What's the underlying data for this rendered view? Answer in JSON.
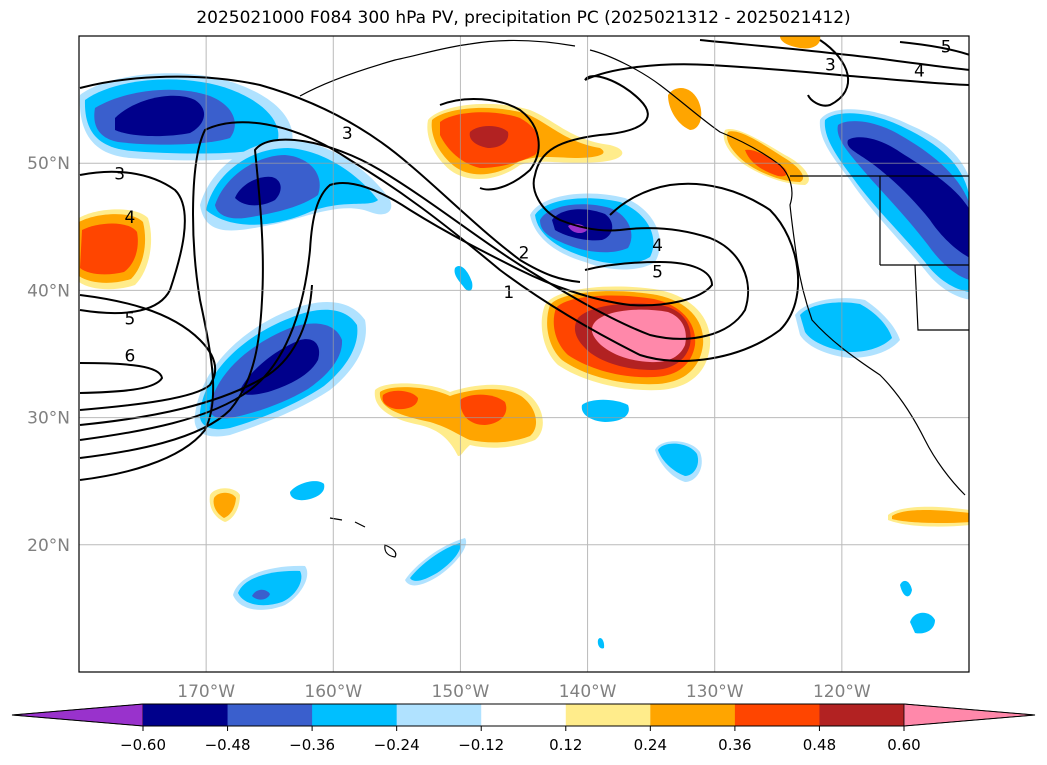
{
  "title": "2025021000 F084 300 hPa PV, precipitation PC (2025021312 - 2025021412)",
  "map": {
    "lon_range": [
      -180,
      -110
    ],
    "lat_range": [
      10,
      60
    ],
    "lon_ticks": [
      {
        "value": -170,
        "label": "170°W"
      },
      {
        "value": -160,
        "label": "160°W"
      },
      {
        "value": -150,
        "label": "150°W"
      },
      {
        "value": -140,
        "label": "140°W"
      },
      {
        "value": -130,
        "label": "130°W"
      },
      {
        "value": -120,
        "label": "120°W"
      }
    ],
    "lat_ticks": [
      {
        "value": 50,
        "label": "50°N"
      },
      {
        "value": 40,
        "label": "40°N"
      },
      {
        "value": 30,
        "label": "30°N"
      },
      {
        "value": 20,
        "label": "20°N"
      }
    ],
    "grid": true,
    "pv_contour_labels": [
      {
        "text": "5",
        "lon": -111.8,
        "lat": 59.1
      },
      {
        "text": "3",
        "lon": -120.9,
        "lat": 57.7
      },
      {
        "text": "4",
        "lon": -113.9,
        "lat": 57.2
      },
      {
        "text": "3",
        "lon": -158.9,
        "lat": 52.3
      },
      {
        "text": "3",
        "lon": -176.8,
        "lat": 49.1
      },
      {
        "text": "4",
        "lon": -176.0,
        "lat": 45.7
      },
      {
        "text": "2",
        "lon": -145.0,
        "lat": 42.9
      },
      {
        "text": "4",
        "lon": -134.5,
        "lat": 43.5
      },
      {
        "text": "5",
        "lon": -134.5,
        "lat": 41.4
      },
      {
        "text": "1",
        "lon": -146.2,
        "lat": 39.8
      },
      {
        "text": "5",
        "lon": -176.0,
        "lat": 37.7
      },
      {
        "text": "6",
        "lon": -176.0,
        "lat": 34.8
      }
    ]
  },
  "colorbar": {
    "levels": [
      "−0.60",
      "−0.48",
      "−0.36",
      "−0.24",
      "−0.12",
      "0.12",
      "0.24",
      "0.36",
      "0.48",
      "0.60"
    ],
    "colors": [
      "#9932cc",
      "#00008b",
      "#3a5fcd",
      "#00bfff",
      "#b0e2ff",
      "#ffffff",
      "#ffec8b",
      "#ffa500",
      "#ff4500",
      "#b22222",
      "#ff88aa"
    ]
  }
}
